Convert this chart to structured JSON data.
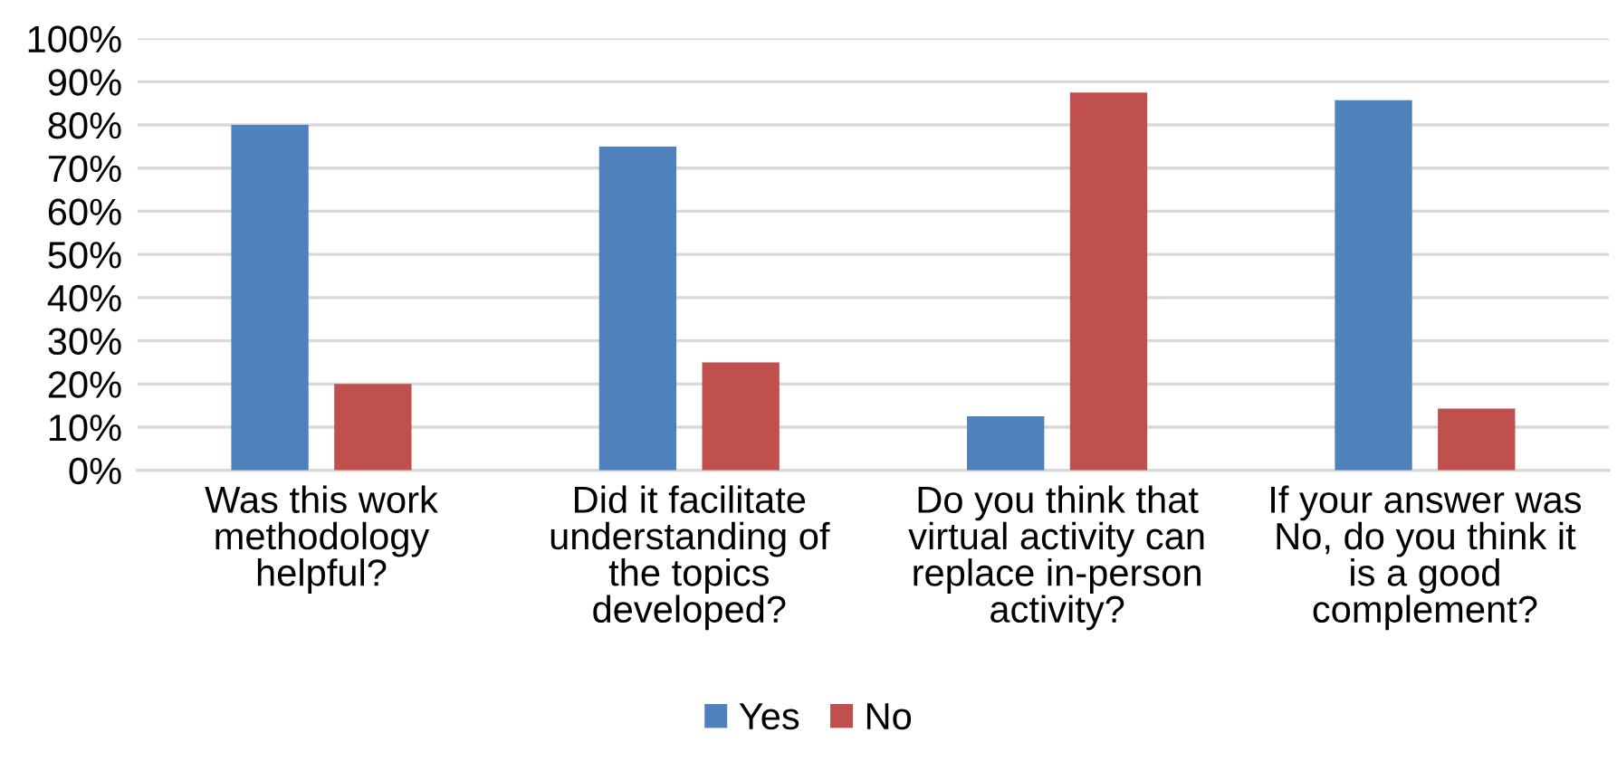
{
  "chart_data": {
    "type": "bar",
    "categories": [
      "Was this work\nmethodology\nhelpful?",
      "Did it facilitate\nunderstanding of\nthe topics\ndeveloped?",
      "Do you think that\nvirtual activity can\nreplace in-person\nactivity?",
      "If your answer was\nNo, do you think it\nis a good\ncomplement?"
    ],
    "series": [
      {
        "name": "Yes",
        "color": "#4f81bd",
        "values": [
          80,
          75,
          12.5,
          85.7
        ]
      },
      {
        "name": "No",
        "color": "#c0504d",
        "values": [
          20,
          25,
          87.5,
          14.3
        ]
      }
    ],
    "ylim": [
      0,
      100
    ],
    "yticks": [
      {
        "value": 0,
        "label": "0%"
      },
      {
        "value": 10,
        "label": "10%"
      },
      {
        "value": 20,
        "label": "20%"
      },
      {
        "value": 30,
        "label": "30%"
      },
      {
        "value": 40,
        "label": "40%"
      },
      {
        "value": 50,
        "label": "50%"
      },
      {
        "value": 60,
        "label": "60%"
      },
      {
        "value": 70,
        "label": "70%"
      },
      {
        "value": 80,
        "label": "80%"
      },
      {
        "value": 90,
        "label": "90%"
      },
      {
        "value": 100,
        "label": "100%"
      }
    ],
    "grid": "y",
    "legend": "bottom"
  }
}
